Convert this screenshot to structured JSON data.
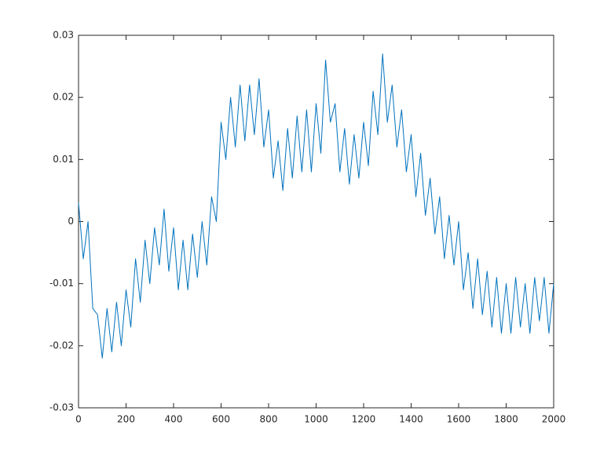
{
  "chart_data": {
    "type": "line",
    "x": [
      0,
      20,
      40,
      60,
      80,
      100,
      120,
      140,
      160,
      180,
      200,
      220,
      240,
      260,
      280,
      300,
      320,
      340,
      360,
      380,
      400,
      420,
      440,
      460,
      480,
      500,
      520,
      540,
      560,
      580,
      600,
      620,
      640,
      660,
      680,
      700,
      720,
      740,
      760,
      780,
      800,
      820,
      840,
      860,
      880,
      900,
      920,
      940,
      960,
      980,
      1000,
      1020,
      1040,
      1060,
      1080,
      1100,
      1120,
      1140,
      1160,
      1180,
      1200,
      1220,
      1240,
      1260,
      1280,
      1300,
      1320,
      1340,
      1360,
      1380,
      1400,
      1420,
      1440,
      1460,
      1480,
      1500,
      1520,
      1540,
      1560,
      1580,
      1600,
      1620,
      1640,
      1660,
      1680,
      1700,
      1720,
      1740,
      1760,
      1780,
      1800,
      1820,
      1840,
      1860,
      1880,
      1900,
      1920,
      1940,
      1960,
      1980,
      2000
    ],
    "series": [
      {
        "color": "#0072bd",
        "values": [
          0.003,
          -0.006,
          0.0,
          -0.014,
          -0.015,
          -0.022,
          -0.014,
          -0.021,
          -0.013,
          -0.02,
          -0.011,
          -0.017,
          -0.006,
          -0.013,
          -0.003,
          -0.01,
          -0.001,
          -0.007,
          0.002,
          -0.008,
          -0.001,
          -0.011,
          -0.003,
          -0.011,
          -0.002,
          -0.009,
          0.0,
          -0.007,
          0.004,
          0.0,
          0.016,
          0.01,
          0.02,
          0.012,
          0.022,
          0.013,
          0.022,
          0.014,
          0.023,
          0.012,
          0.018,
          0.007,
          0.013,
          0.005,
          0.015,
          0.007,
          0.017,
          0.008,
          0.018,
          0.008,
          0.019,
          0.011,
          0.026,
          0.016,
          0.019,
          0.008,
          0.015,
          0.006,
          0.014,
          0.007,
          0.016,
          0.009,
          0.021,
          0.014,
          0.027,
          0.016,
          0.022,
          0.012,
          0.018,
          0.008,
          0.014,
          0.004,
          0.011,
          0.001,
          0.007,
          -0.002,
          0.004,
          -0.006,
          0.001,
          -0.007,
          0.0,
          -0.011,
          -0.005,
          -0.014,
          -0.006,
          -0.015,
          -0.008,
          -0.017,
          -0.009,
          -0.018,
          -0.01,
          -0.018,
          -0.009,
          -0.017,
          -0.01,
          -0.018,
          -0.009,
          -0.016,
          -0.009,
          -0.018,
          -0.01
        ]
      }
    ],
    "xlim": [
      0,
      2000
    ],
    "xticks": [
      0,
      200,
      400,
      600,
      800,
      1000,
      1200,
      1400,
      1600,
      1800,
      2000
    ],
    "ylim": [
      -0.03,
      0.03
    ],
    "yticks": [
      -0.03,
      -0.02,
      -0.01,
      0,
      0.01,
      0.02,
      0.03
    ]
  }
}
